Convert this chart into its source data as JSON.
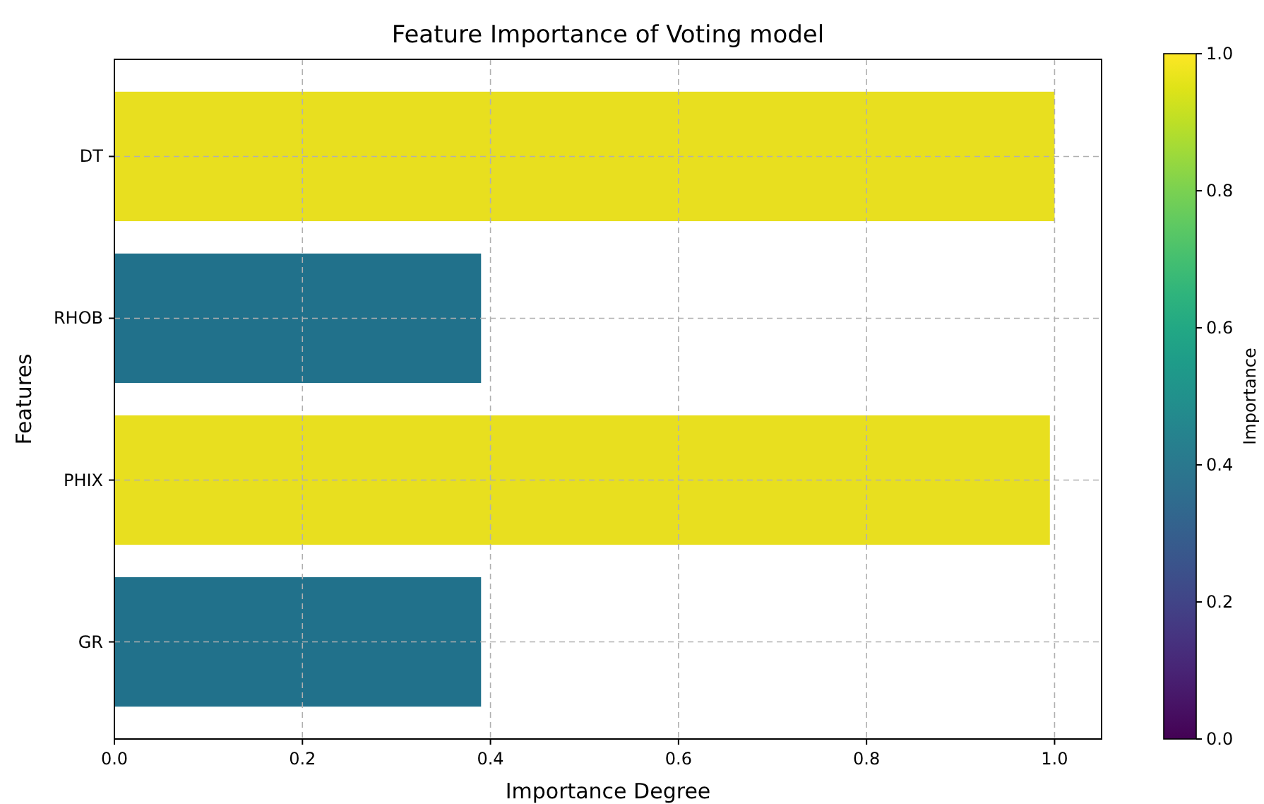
{
  "chart_data": {
    "type": "bar",
    "orientation": "horizontal",
    "title": "Feature Importance of Voting model",
    "xlabel": "Importance Degree",
    "ylabel": "Features",
    "clabel": "Importance",
    "categories": [
      "DT",
      "RHOB",
      "PHIX",
      "GR"
    ],
    "values": [
      1.0,
      0.39,
      0.995,
      0.39
    ],
    "colors": [
      "#e8df1f",
      "#21718b",
      "#e8df1f",
      "#21718b"
    ],
    "xlim": [
      0,
      1.05
    ],
    "xticks": [
      {
        "value": 0,
        "label": "0.0"
      },
      0.2,
      0.4,
      0.6,
      0.8,
      {
        "value": 1,
        "label": "1.0"
      }
    ],
    "clim": [
      0,
      1
    ],
    "cticks": [
      {
        "value": 0,
        "label": "0.0"
      },
      0.2,
      0.4,
      0.6,
      0.8,
      {
        "value": 1,
        "label": "1.0"
      }
    ],
    "grid": true
  }
}
